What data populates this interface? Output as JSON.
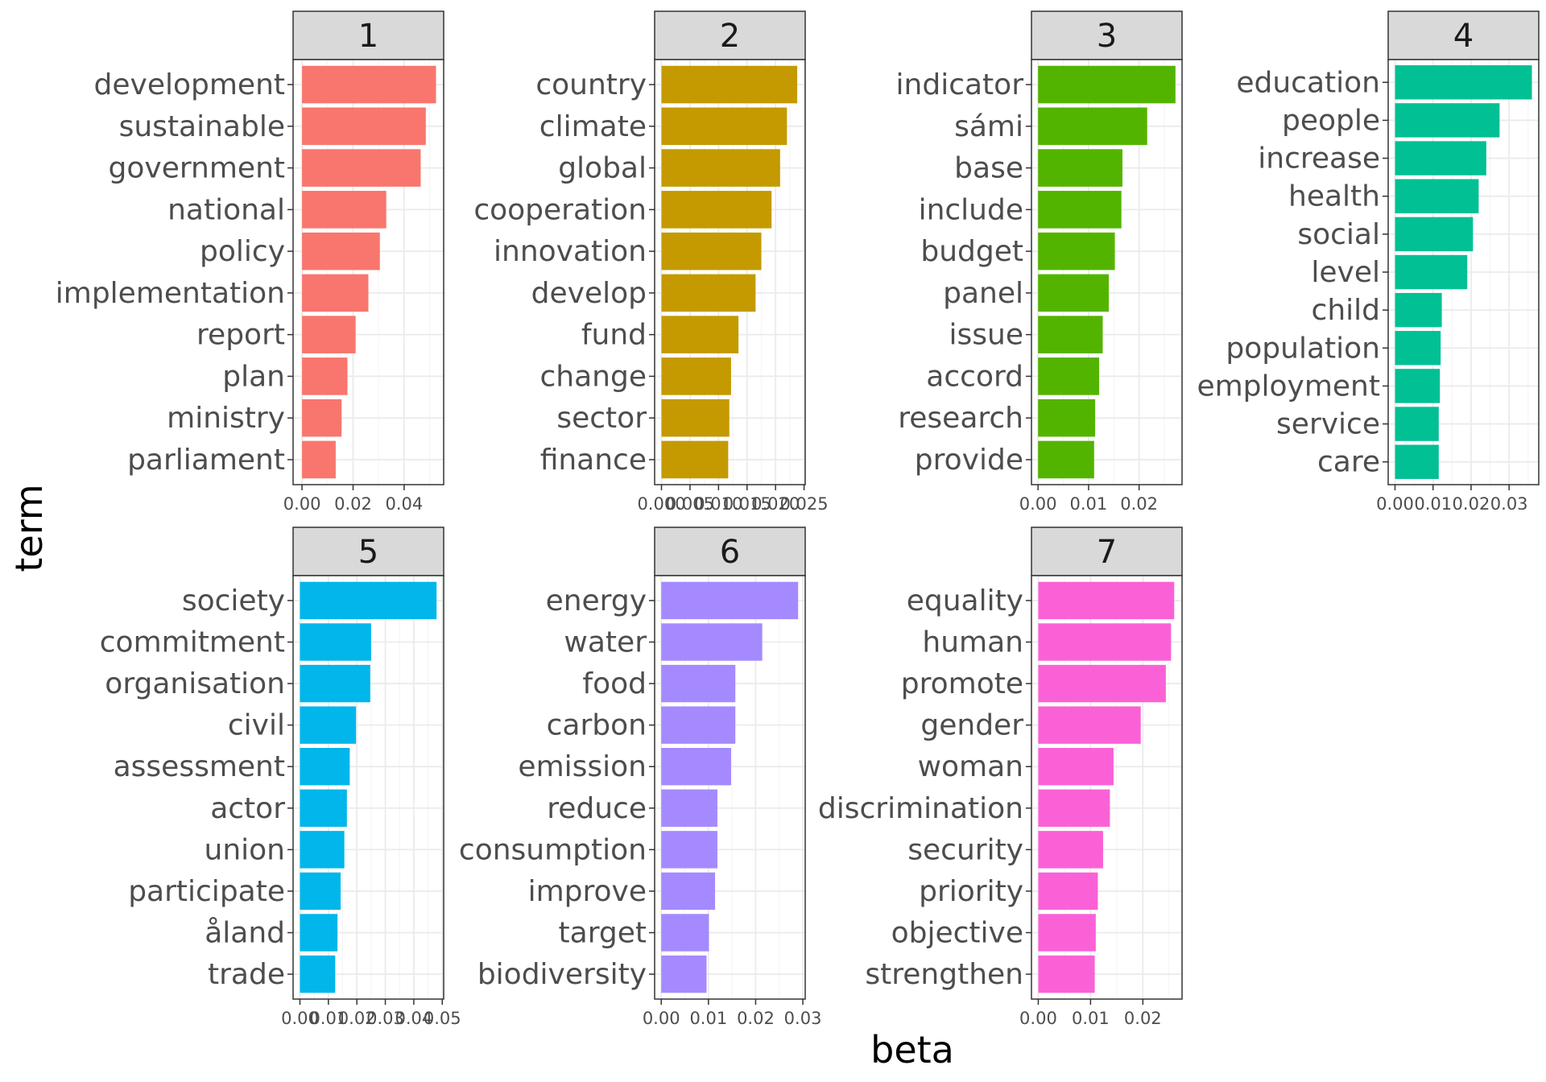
{
  "chart_data": {
    "type": "bar",
    "orientation": "horizontal",
    "xlabel": "beta",
    "ylabel": "term",
    "grid": true,
    "legend": "none",
    "facets": [
      {
        "title": "1",
        "color": "#F8766D",
        "xlim": [
          -0.0035,
          0.0555
        ],
        "xticks": [
          0.0,
          0.02,
          0.04
        ],
        "xtick_labels": [
          "0.00",
          "0.02",
          "0.04"
        ],
        "categories": [
          "development",
          "sustainable",
          "government",
          "national",
          "policy",
          "implementation",
          "report",
          "plan",
          "ministry",
          "parliament"
        ],
        "values": [
          0.0525,
          0.0485,
          0.0465,
          0.033,
          0.0305,
          0.026,
          0.021,
          0.0178,
          0.0155,
          0.0132
        ]
      },
      {
        "title": "2",
        "color": "#C49A00",
        "xlim": [
          -0.0012,
          0.0252
        ],
        "xticks": [
          0.0,
          0.005,
          0.01,
          0.015,
          0.02,
          0.025
        ],
        "xtick_labels": [
          "0.000",
          "0.005",
          "0.010",
          "0.015",
          "0.020",
          "0.025"
        ],
        "categories": [
          "country",
          "climate",
          "global",
          "cooperation",
          "innovation",
          "develop",
          "fund",
          "change",
          "sector",
          "finance"
        ],
        "values": [
          0.0238,
          0.022,
          0.0208,
          0.0193,
          0.0175,
          0.0165,
          0.0135,
          0.0122,
          0.0119,
          0.0117
        ]
      },
      {
        "title": "3",
        "color": "#53B400",
        "xlim": [
          -0.0013,
          0.0285
        ],
        "xticks": [
          0.0,
          0.01,
          0.02
        ],
        "xtick_labels": [
          "0.00",
          "0.01",
          "0.02"
        ],
        "categories": [
          "indicator",
          "sámi",
          "base",
          "include",
          "budget",
          "panel",
          "issue",
          "accord",
          "research",
          "provide"
        ],
        "values": [
          0.0272,
          0.0216,
          0.0167,
          0.0165,
          0.0152,
          0.014,
          0.0128,
          0.0121,
          0.0113,
          0.0111
        ]
      },
      {
        "title": "4",
        "color": "#00C094",
        "xlim": [
          -0.0018,
          0.0378
        ],
        "xticks": [
          0.0,
          0.01,
          0.02,
          0.03
        ],
        "xtick_labels": [
          "0.00",
          "0.01",
          "0.02",
          "0.03"
        ],
        "categories": [
          "education",
          "people",
          "increase",
          "health",
          "social",
          "level",
          "child",
          "population",
          "employment",
          "service",
          "care"
        ],
        "values": [
          0.036,
          0.0275,
          0.024,
          0.022,
          0.0205,
          0.019,
          0.0123,
          0.012,
          0.0118,
          0.0115,
          0.0115
        ]
      },
      {
        "title": "5",
        "color": "#00B6EB",
        "xlim": [
          -0.0024,
          0.0505
        ],
        "xticks": [
          0.0,
          0.01,
          0.02,
          0.03,
          0.04,
          0.05
        ],
        "xtick_labels": [
          "0.00",
          "0.01",
          "0.02",
          "0.03",
          "0.04",
          "0.05"
        ],
        "categories": [
          "society",
          "commitment",
          "organisation",
          "civil",
          "assessment",
          "actor",
          "union",
          "participate",
          "åland",
          "trade"
        ],
        "values": [
          0.048,
          0.025,
          0.0247,
          0.0197,
          0.0175,
          0.0165,
          0.0156,
          0.0143,
          0.0132,
          0.0124
        ]
      },
      {
        "title": "6",
        "color": "#A58AFF",
        "xlim": [
          -0.0014,
          0.0305
        ],
        "xticks": [
          0.0,
          0.01,
          0.02,
          0.03
        ],
        "xtick_labels": [
          "0.00",
          "0.01",
          "0.02",
          "0.03"
        ],
        "categories": [
          "energy",
          "water",
          "food",
          "carbon",
          "emission",
          "reduce",
          "consumption",
          "improve",
          "target",
          "biodiversity"
        ],
        "values": [
          0.029,
          0.0214,
          0.0157,
          0.0157,
          0.0148,
          0.0119,
          0.0119,
          0.0114,
          0.0101,
          0.0096
        ]
      },
      {
        "title": "7",
        "color": "#FB61D7",
        "xlim": [
          -0.0013,
          0.0275
        ],
        "xticks": [
          0.0,
          0.01,
          0.02
        ],
        "xtick_labels": [
          "0.00",
          "0.01",
          "0.02"
        ],
        "categories": [
          "equality",
          "human",
          "promote",
          "gender",
          "woman",
          "discrimination",
          "security",
          "priority",
          "objective",
          "strengthen"
        ],
        "values": [
          0.026,
          0.0254,
          0.0244,
          0.0196,
          0.0144,
          0.0137,
          0.0124,
          0.0114,
          0.011,
          0.0108
        ]
      }
    ]
  }
}
